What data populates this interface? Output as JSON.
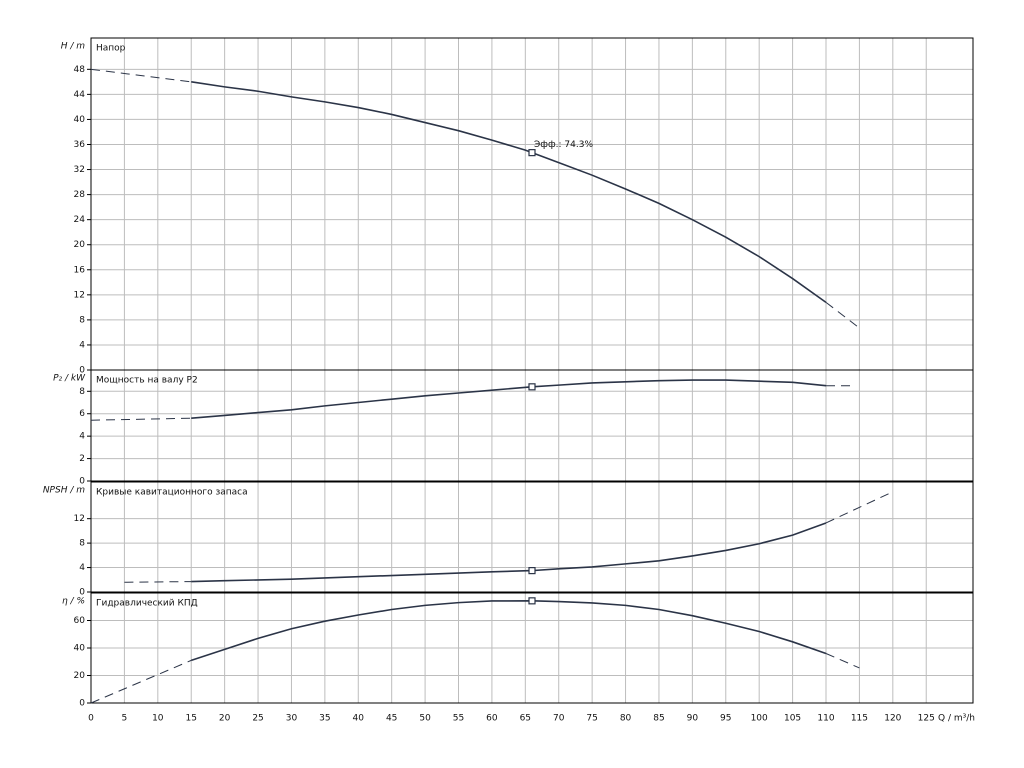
{
  "chart_data": [
    {
      "type": "line",
      "title": "Напор",
      "ylabel": "H / m",
      "xlim": [
        0,
        132
      ],
      "xticks": [
        0,
        5,
        10,
        15,
        20,
        25,
        30,
        35,
        40,
        45,
        50,
        55,
        60,
        65,
        70,
        75,
        80,
        85,
        90,
        95,
        100,
        105,
        110,
        115,
        120,
        125
      ],
      "ylim": [
        0,
        53
      ],
      "yticks": [
        0,
        4,
        8,
        12,
        16,
        20,
        24,
        28,
        32,
        36,
        40,
        44,
        48
      ],
      "grid": true,
      "series": [
        {
          "style": "dashed",
          "color": "#2b3447",
          "x": [
            0,
            15
          ],
          "values": [
            48,
            46
          ]
        },
        {
          "style": "solid",
          "color": "#2b3447",
          "x": [
            15,
            20,
            25,
            30,
            35,
            40,
            45,
            50,
            55,
            60,
            65,
            70,
            75,
            80,
            85,
            90,
            95,
            100,
            105,
            110
          ],
          "values": [
            46,
            45.2,
            44.5,
            43.6,
            42.8,
            41.9,
            40.8,
            39.5,
            38.2,
            36.7,
            35.1,
            33.1,
            31.1,
            28.9,
            26.6,
            24,
            21.2,
            18.1,
            14.6,
            10.8
          ]
        },
        {
          "style": "dashed",
          "color": "#2b3447",
          "x": [
            110,
            115
          ],
          "values": [
            10.8,
            6.7
          ]
        }
      ],
      "points": [
        {
          "x": 66,
          "y": 34.7,
          "label": "Эфф.: 74.3%"
        }
      ]
    },
    {
      "type": "line",
      "title": "Мощность на валу P2",
      "ylabel": "P₂ / kW",
      "xlim": [
        0,
        132
      ],
      "xticks": [
        0,
        5,
        10,
        15,
        20,
        25,
        30,
        35,
        40,
        45,
        50,
        55,
        60,
        65,
        70,
        75,
        80,
        85,
        90,
        95,
        100,
        105,
        110,
        115,
        120,
        125
      ],
      "ylim": [
        0,
        9.9
      ],
      "yticks": [
        0,
        2,
        4,
        6,
        8
      ],
      "grid": true,
      "series": [
        {
          "style": "dashed",
          "color": "#2b3447",
          "x": [
            0,
            15
          ],
          "values": [
            5.42,
            5.6
          ]
        },
        {
          "style": "solid",
          "color": "#2b3447",
          "x": [
            15,
            20,
            25,
            30,
            35,
            40,
            45,
            50,
            55,
            60,
            66,
            70,
            75,
            80,
            85,
            90,
            95,
            100,
            105,
            110
          ],
          "values": [
            5.6,
            5.85,
            6.1,
            6.35,
            6.7,
            7,
            7.3,
            7.6,
            7.85,
            8.1,
            8.4,
            8.55,
            8.75,
            8.85,
            8.95,
            9,
            9,
            8.9,
            8.8,
            8.5
          ]
        },
        {
          "style": "dashed",
          "color": "#2b3447",
          "x": [
            110,
            114
          ],
          "values": [
            8.5,
            8.5
          ]
        }
      ],
      "points": [
        {
          "x": 66,
          "y": 8.4
        }
      ]
    },
    {
      "type": "line",
      "title": "Кривые кавитационного запаса",
      "ylabel": "NPSH / m",
      "xlim": [
        0,
        132
      ],
      "xticks": [
        0,
        5,
        10,
        15,
        20,
        25,
        30,
        35,
        40,
        45,
        50,
        55,
        60,
        65,
        70,
        75,
        80,
        85,
        90,
        95,
        100,
        105,
        110,
        115,
        120,
        125
      ],
      "ylim": [
        0,
        18
      ],
      "yticks": [
        0,
        4,
        8,
        12
      ],
      "grid": true,
      "series": [
        {
          "style": "dashed",
          "color": "#2b3447",
          "x": [
            5,
            15
          ],
          "values": [
            1.6,
            1.7
          ]
        },
        {
          "style": "solid",
          "color": "#2b3447",
          "x": [
            15,
            20,
            30,
            40,
            50,
            60,
            66,
            70,
            75,
            80,
            85,
            90,
            95,
            100,
            105,
            110
          ],
          "values": [
            1.7,
            1.85,
            2.1,
            2.5,
            2.9,
            3.3,
            3.5,
            3.8,
            4.1,
            4.6,
            5.1,
            5.9,
            6.8,
            7.9,
            9.3,
            11.3
          ]
        },
        {
          "style": "dashed",
          "color": "#2b3447",
          "x": [
            110,
            120
          ],
          "values": [
            11.3,
            16.4
          ]
        }
      ],
      "points": [
        {
          "x": 66,
          "y": 3.5
        }
      ]
    },
    {
      "type": "line",
      "title": "Гидравлический КПД",
      "ylabel": "η / %",
      "xlabel": "Q / m³/h",
      "xlim": [
        0,
        132
      ],
      "xticks": [
        0,
        5,
        10,
        15,
        20,
        25,
        30,
        35,
        40,
        45,
        50,
        55,
        60,
        65,
        70,
        75,
        80,
        85,
        90,
        95,
        100,
        105,
        110,
        115,
        120,
        125
      ],
      "ylim": [
        0,
        80
      ],
      "yticks": [
        0,
        20,
        40,
        60
      ],
      "grid": true,
      "series": [
        {
          "style": "dashed",
          "color": "#2b3447",
          "x": [
            0,
            15
          ],
          "values": [
            0,
            31
          ]
        },
        {
          "style": "solid",
          "color": "#2b3447",
          "x": [
            15,
            20,
            25,
            30,
            35,
            40,
            45,
            50,
            55,
            60,
            66,
            70,
            75,
            80,
            85,
            90,
            95,
            100,
            105,
            110
          ],
          "values": [
            31,
            39,
            47,
            54,
            59.5,
            64,
            68,
            71,
            73,
            74.2,
            74.3,
            73.8,
            72.8,
            71,
            68,
            63.5,
            58,
            52,
            44.5,
            36
          ]
        },
        {
          "style": "dashed",
          "color": "#2b3447",
          "x": [
            110,
            115
          ],
          "values": [
            36,
            25.5
          ]
        }
      ],
      "points": [
        {
          "x": 66,
          "y": 74.3
        }
      ]
    }
  ]
}
